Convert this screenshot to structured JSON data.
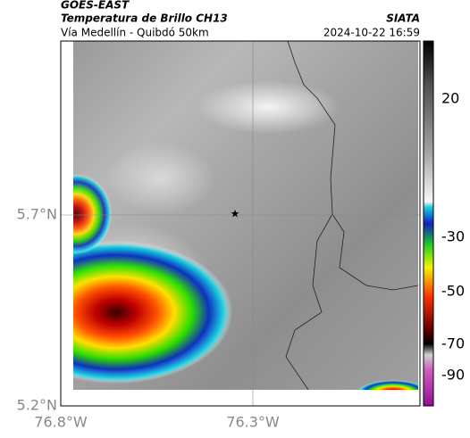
{
  "header": {
    "source": "GOES-EAST",
    "title": "Temperatura de Brillo CH13",
    "subtitle": "Vía Medellín - Quibdó 50km",
    "organization": "SIATA",
    "datetime": "2024-10-22 16:59"
  },
  "axes": {
    "x_ticks": [
      "76.8°W",
      "76.3°W"
    ],
    "y_ticks": [
      "5.7°N",
      "5.2°N"
    ]
  },
  "colorbar": {
    "ticks": [
      "20",
      "-30",
      "-50",
      "-70",
      "-90"
    ]
  }
}
